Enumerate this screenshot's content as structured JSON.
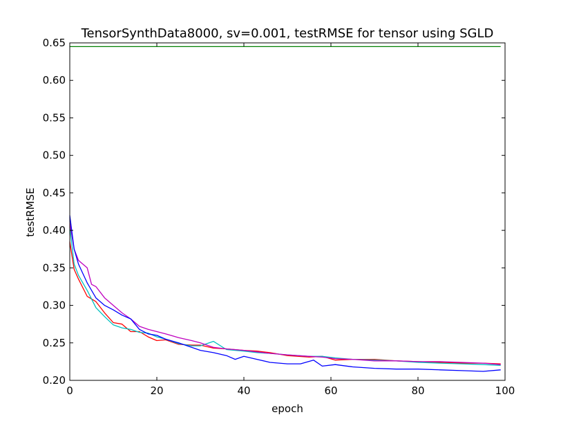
{
  "chart_data": {
    "type": "line",
    "title": "TensorSynthData8000, sv=0.001, testRMSE for tensor using SGLD",
    "xlabel": "epoch",
    "ylabel": "testRMSE",
    "xlim": [
      0,
      100
    ],
    "ylim": [
      0.2,
      0.65
    ],
    "xticks": [
      0,
      20,
      40,
      60,
      80,
      100
    ],
    "xtick_labels": [
      "0",
      "20",
      "40",
      "60",
      "80",
      "100"
    ],
    "yticks": [
      0.2,
      0.25,
      0.3,
      0.35,
      0.4,
      0.45,
      0.5,
      0.55,
      0.6,
      0.65
    ],
    "ytick_labels": [
      "0.20",
      "0.25",
      "0.30",
      "0.35",
      "0.40",
      "0.45",
      "0.50",
      "0.55",
      "0.60",
      "0.65"
    ],
    "grid": false,
    "legend": "none",
    "series": [
      {
        "color": "#008000",
        "x": [
          0,
          99
        ],
        "y": [
          0.645,
          0.645
        ]
      },
      {
        "color": "#ff0000",
        "x": [
          0,
          1,
          2,
          4,
          6,
          8,
          10,
          12,
          14,
          16,
          18,
          20,
          22,
          25,
          28,
          30,
          33,
          36,
          40,
          43,
          46,
          50,
          55,
          58,
          61,
          65,
          70,
          75,
          80,
          85,
          90,
          95,
          99
        ],
        "y": [
          0.385,
          0.348,
          0.335,
          0.312,
          0.305,
          0.29,
          0.277,
          0.275,
          0.265,
          0.265,
          0.258,
          0.253,
          0.254,
          0.248,
          0.247,
          0.247,
          0.243,
          0.242,
          0.24,
          0.239,
          0.237,
          0.233,
          0.231,
          0.232,
          0.227,
          0.228,
          0.228,
          0.226,
          0.225,
          0.224,
          0.223,
          0.223,
          0.222
        ]
      },
      {
        "color": "#00bfbf",
        "x": [
          0,
          1,
          2,
          4,
          6,
          8,
          10,
          12,
          14,
          16,
          18,
          20,
          22,
          25,
          28,
          30,
          33,
          36,
          40,
          43,
          46,
          50,
          55,
          58,
          61,
          65,
          70,
          75,
          80,
          85,
          90,
          95,
          99
        ],
        "y": [
          0.405,
          0.355,
          0.34,
          0.32,
          0.297,
          0.285,
          0.274,
          0.27,
          0.268,
          0.264,
          0.263,
          0.258,
          0.255,
          0.249,
          0.246,
          0.246,
          0.252,
          0.241,
          0.239,
          0.237,
          0.236,
          0.234,
          0.232,
          0.232,
          0.23,
          0.228,
          0.227,
          0.226,
          0.224,
          0.223,
          0.222,
          0.221,
          0.22
        ]
      },
      {
        "color": "#bf00bf",
        "x": [
          0,
          1,
          2,
          4,
          5,
          6,
          8,
          10,
          12,
          14,
          16,
          18,
          20,
          22,
          25,
          28,
          30,
          33,
          36,
          40,
          43,
          46,
          50,
          55,
          58,
          61,
          65,
          70,
          75,
          80,
          85,
          90,
          95,
          99
        ],
        "y": [
          0.41,
          0.375,
          0.36,
          0.35,
          0.328,
          0.325,
          0.31,
          0.3,
          0.29,
          0.282,
          0.272,
          0.268,
          0.265,
          0.262,
          0.257,
          0.253,
          0.25,
          0.244,
          0.242,
          0.24,
          0.238,
          0.236,
          0.234,
          0.232,
          0.231,
          0.229,
          0.228,
          0.226,
          0.226,
          0.225,
          0.225,
          0.224,
          0.223,
          0.221
        ]
      },
      {
        "color": "#0000ff",
        "x": [
          0,
          1,
          2,
          4,
          6,
          8,
          10,
          12,
          14,
          16,
          18,
          20,
          22,
          25,
          28,
          30,
          33,
          36,
          38,
          40,
          43,
          46,
          50,
          53,
          56,
          58,
          61,
          65,
          70,
          75,
          80,
          85,
          90,
          95,
          99
        ],
        "y": [
          0.42,
          0.375,
          0.355,
          0.33,
          0.31,
          0.3,
          0.294,
          0.287,
          0.282,
          0.268,
          0.262,
          0.26,
          0.255,
          0.25,
          0.244,
          0.24,
          0.237,
          0.233,
          0.228,
          0.232,
          0.228,
          0.224,
          0.222,
          0.222,
          0.227,
          0.219,
          0.221,
          0.218,
          0.216,
          0.215,
          0.215,
          0.214,
          0.213,
          0.212,
          0.214
        ]
      }
    ]
  }
}
